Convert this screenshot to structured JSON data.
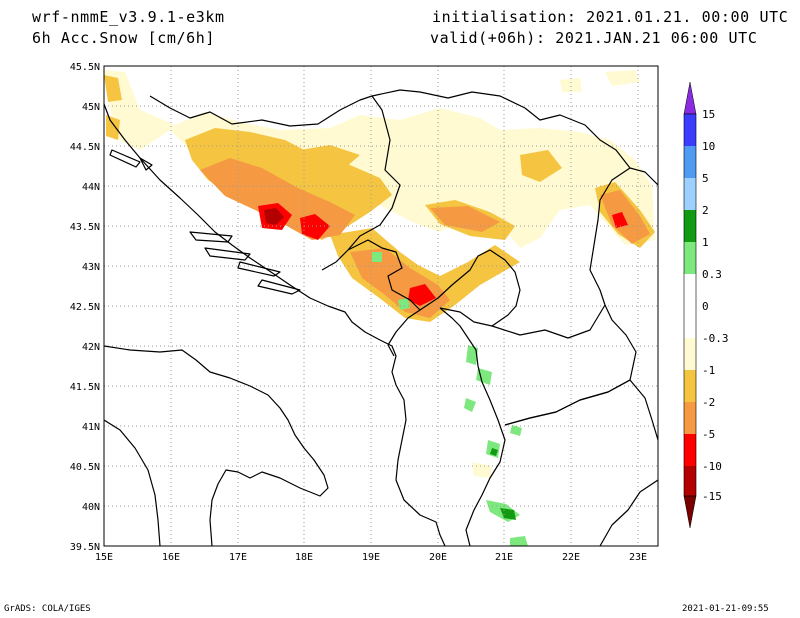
{
  "header": {
    "model": "wrf-nmmE_v3.9.1-e3km",
    "variable": "6h Acc.Snow [cm/6h]",
    "init": "initialisation: 2021.01.21.  00:00 UTC",
    "valid": "valid(+06h): 2021.JAN.21 06:00 UTC"
  },
  "map": {
    "lat_labels": [
      "45.5N",
      "45N",
      "44.5N",
      "44N",
      "43.5N",
      "43N",
      "42.5N",
      "42N",
      "41.5N",
      "41N",
      "40.5N",
      "40N",
      "39.5N"
    ],
    "lon_labels": [
      "15E",
      "16E",
      "17E",
      "18E",
      "19E",
      "20E",
      "21E",
      "22E",
      "23E"
    ],
    "region": "Western Balkans / Adriatic",
    "lat_range": [
      39.5,
      45.5
    ],
    "lon_range": [
      15,
      23.3
    ],
    "grid": true
  },
  "colorbar": {
    "labels": [
      "15",
      "10",
      "5",
      "2",
      "1",
      "0.3",
      "0",
      "-0.3",
      "-1",
      "-2",
      "-5",
      "-10",
      "-15"
    ],
    "colors": [
      "#8a2be2",
      "#3c3cff",
      "#4f9bf2",
      "#9ed0ff",
      "#ffffff",
      "#139a13",
      "#7de87d",
      "#ffffff",
      "#fffad2",
      "#f5c542",
      "#f59a42",
      "#ff0000",
      "#b30000",
      "#7a0000"
    ]
  },
  "footer": {
    "left": "GrADS: COLA/IGES",
    "right": "2021-01-21-09:55"
  }
}
